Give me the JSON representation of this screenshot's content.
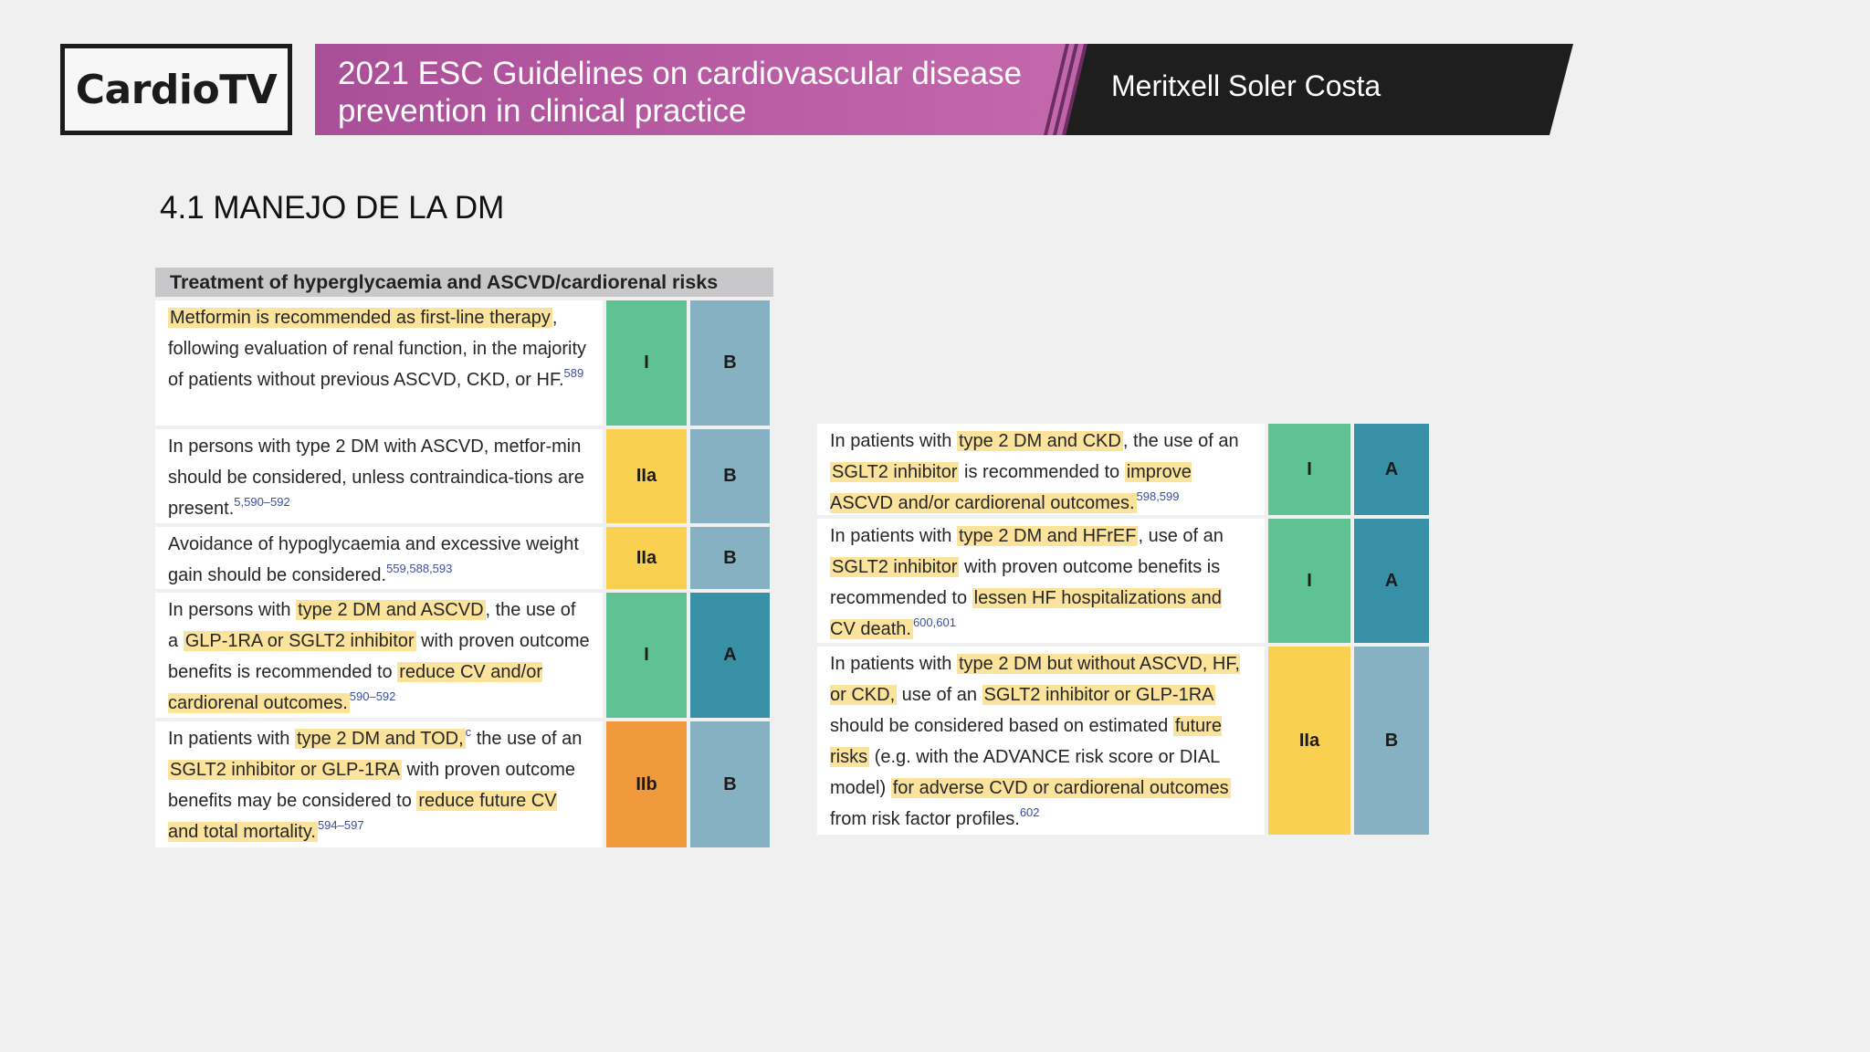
{
  "header": {
    "logo": "CardioTV",
    "title_line1": "2021 ESC Guidelines on cardiovascular disease",
    "title_line2": "prevention in clinical practice",
    "author": "Meritxell Soler Costa"
  },
  "section_title": "4.1 MANEJO DE LA DM",
  "colors": {
    "class_I": "#5ec293",
    "class_IIa": "#f9d04f",
    "class_IIb": "#f09a3d",
    "level_A": "#3890a6",
    "level_B": "#86b1c2",
    "highlight": "#fbe39b",
    "banner_magenta": "#b35a9f",
    "banner_dark": "#1e1e1e"
  },
  "table1": {
    "heading": "Treatment of hyperglycaemia and ASCVD/cardiorenal risks",
    "rows": [
      {
        "segments": [
          {
            "t": "Metformin is recommended as first-line therapy",
            "hl": true
          },
          {
            "t": ", following evaluation of renal function, in the majority of patients without previous ASCVD, CKD, or HF."
          }
        ],
        "ref": "589",
        "cls": "I",
        "lvl": "B"
      },
      {
        "segments": [
          {
            "t": "In persons with type 2 DM with ASCVD, metfor-min should be considered, unless contraindica-tions are present."
          }
        ],
        "ref": "5,590–592",
        "cls": "IIa",
        "lvl": "B"
      },
      {
        "segments": [
          {
            "t": "Avoidance of hypoglycaemia and excessive weight gain should be considered."
          }
        ],
        "ref": "559,588,593",
        "cls": "IIa",
        "lvl": "B"
      },
      {
        "segments": [
          {
            "t": "In persons with "
          },
          {
            "t": "type 2 DM and ASCVD",
            "hl": true
          },
          {
            "t": ", the use of a "
          },
          {
            "t": "GLP-1RA or SGLT2 inhibitor",
            "hl": true
          },
          {
            "t": " with proven outcome benefits is recommended to "
          },
          {
            "t": "reduce CV and/or cardiorenal outcomes.",
            "hl": true
          }
        ],
        "ref": "590–592",
        "cls": "I",
        "lvl": "A"
      },
      {
        "segments": [
          {
            "t": "In patients with "
          },
          {
            "t": "type 2 DM and TOD,",
            "hl": true
          },
          {
            "t": "c",
            "sup": true
          },
          {
            "t": " the use of an "
          },
          {
            "t": "SGLT2 inhibitor or GLP-1RA",
            "hl": true
          },
          {
            "t": " with proven outcome benefits may be considered to "
          },
          {
            "t": "reduce future CV and total mortality.",
            "hl": true
          }
        ],
        "ref": "594–597",
        "cls": "IIb",
        "lvl": "B"
      }
    ]
  },
  "table2": {
    "rows": [
      {
        "segments": [
          {
            "t": "In patients with "
          },
          {
            "t": "type 2 DM and CKD",
            "hl": true
          },
          {
            "t": ", the use of an "
          },
          {
            "t": "SGLT2 inhibitor",
            "hl": true
          },
          {
            "t": " is recommended to "
          },
          {
            "t": "improve ASCVD and/or cardiorenal outcomes.",
            "hl": true
          }
        ],
        "ref": "598,599",
        "cls": "I",
        "lvl": "A"
      },
      {
        "segments": [
          {
            "t": "In patients with "
          },
          {
            "t": "type 2 DM and HFrEF",
            "hl": true
          },
          {
            "t": ", use of an "
          },
          {
            "t": "SGLT2 inhibitor",
            "hl": true
          },
          {
            "t": " with proven outcome benefits is recommended to "
          },
          {
            "t": "lessen HF hospitalizations and CV death.",
            "hl": true
          }
        ],
        "ref": "600,601",
        "cls": "I",
        "lvl": "A"
      },
      {
        "segments": [
          {
            "t": "In patients with "
          },
          {
            "t": "type 2 DM but without ASCVD, HF, or CKD,",
            "hl": true
          },
          {
            "t": " use of an "
          },
          {
            "t": "SGLT2 inhibitor or GLP-1RA",
            "hl": true
          },
          {
            "t": " should be considered based on estimated "
          },
          {
            "t": "future risks",
            "hl": true
          },
          {
            "t": " (e.g. with the ADVANCE risk score or DIAL model) "
          },
          {
            "t": "for adverse CVD or cardiorenal outcomes",
            "hl": true
          },
          {
            "t": " from risk factor profiles."
          }
        ],
        "ref": "602",
        "cls": "IIa",
        "lvl": "B"
      }
    ]
  }
}
